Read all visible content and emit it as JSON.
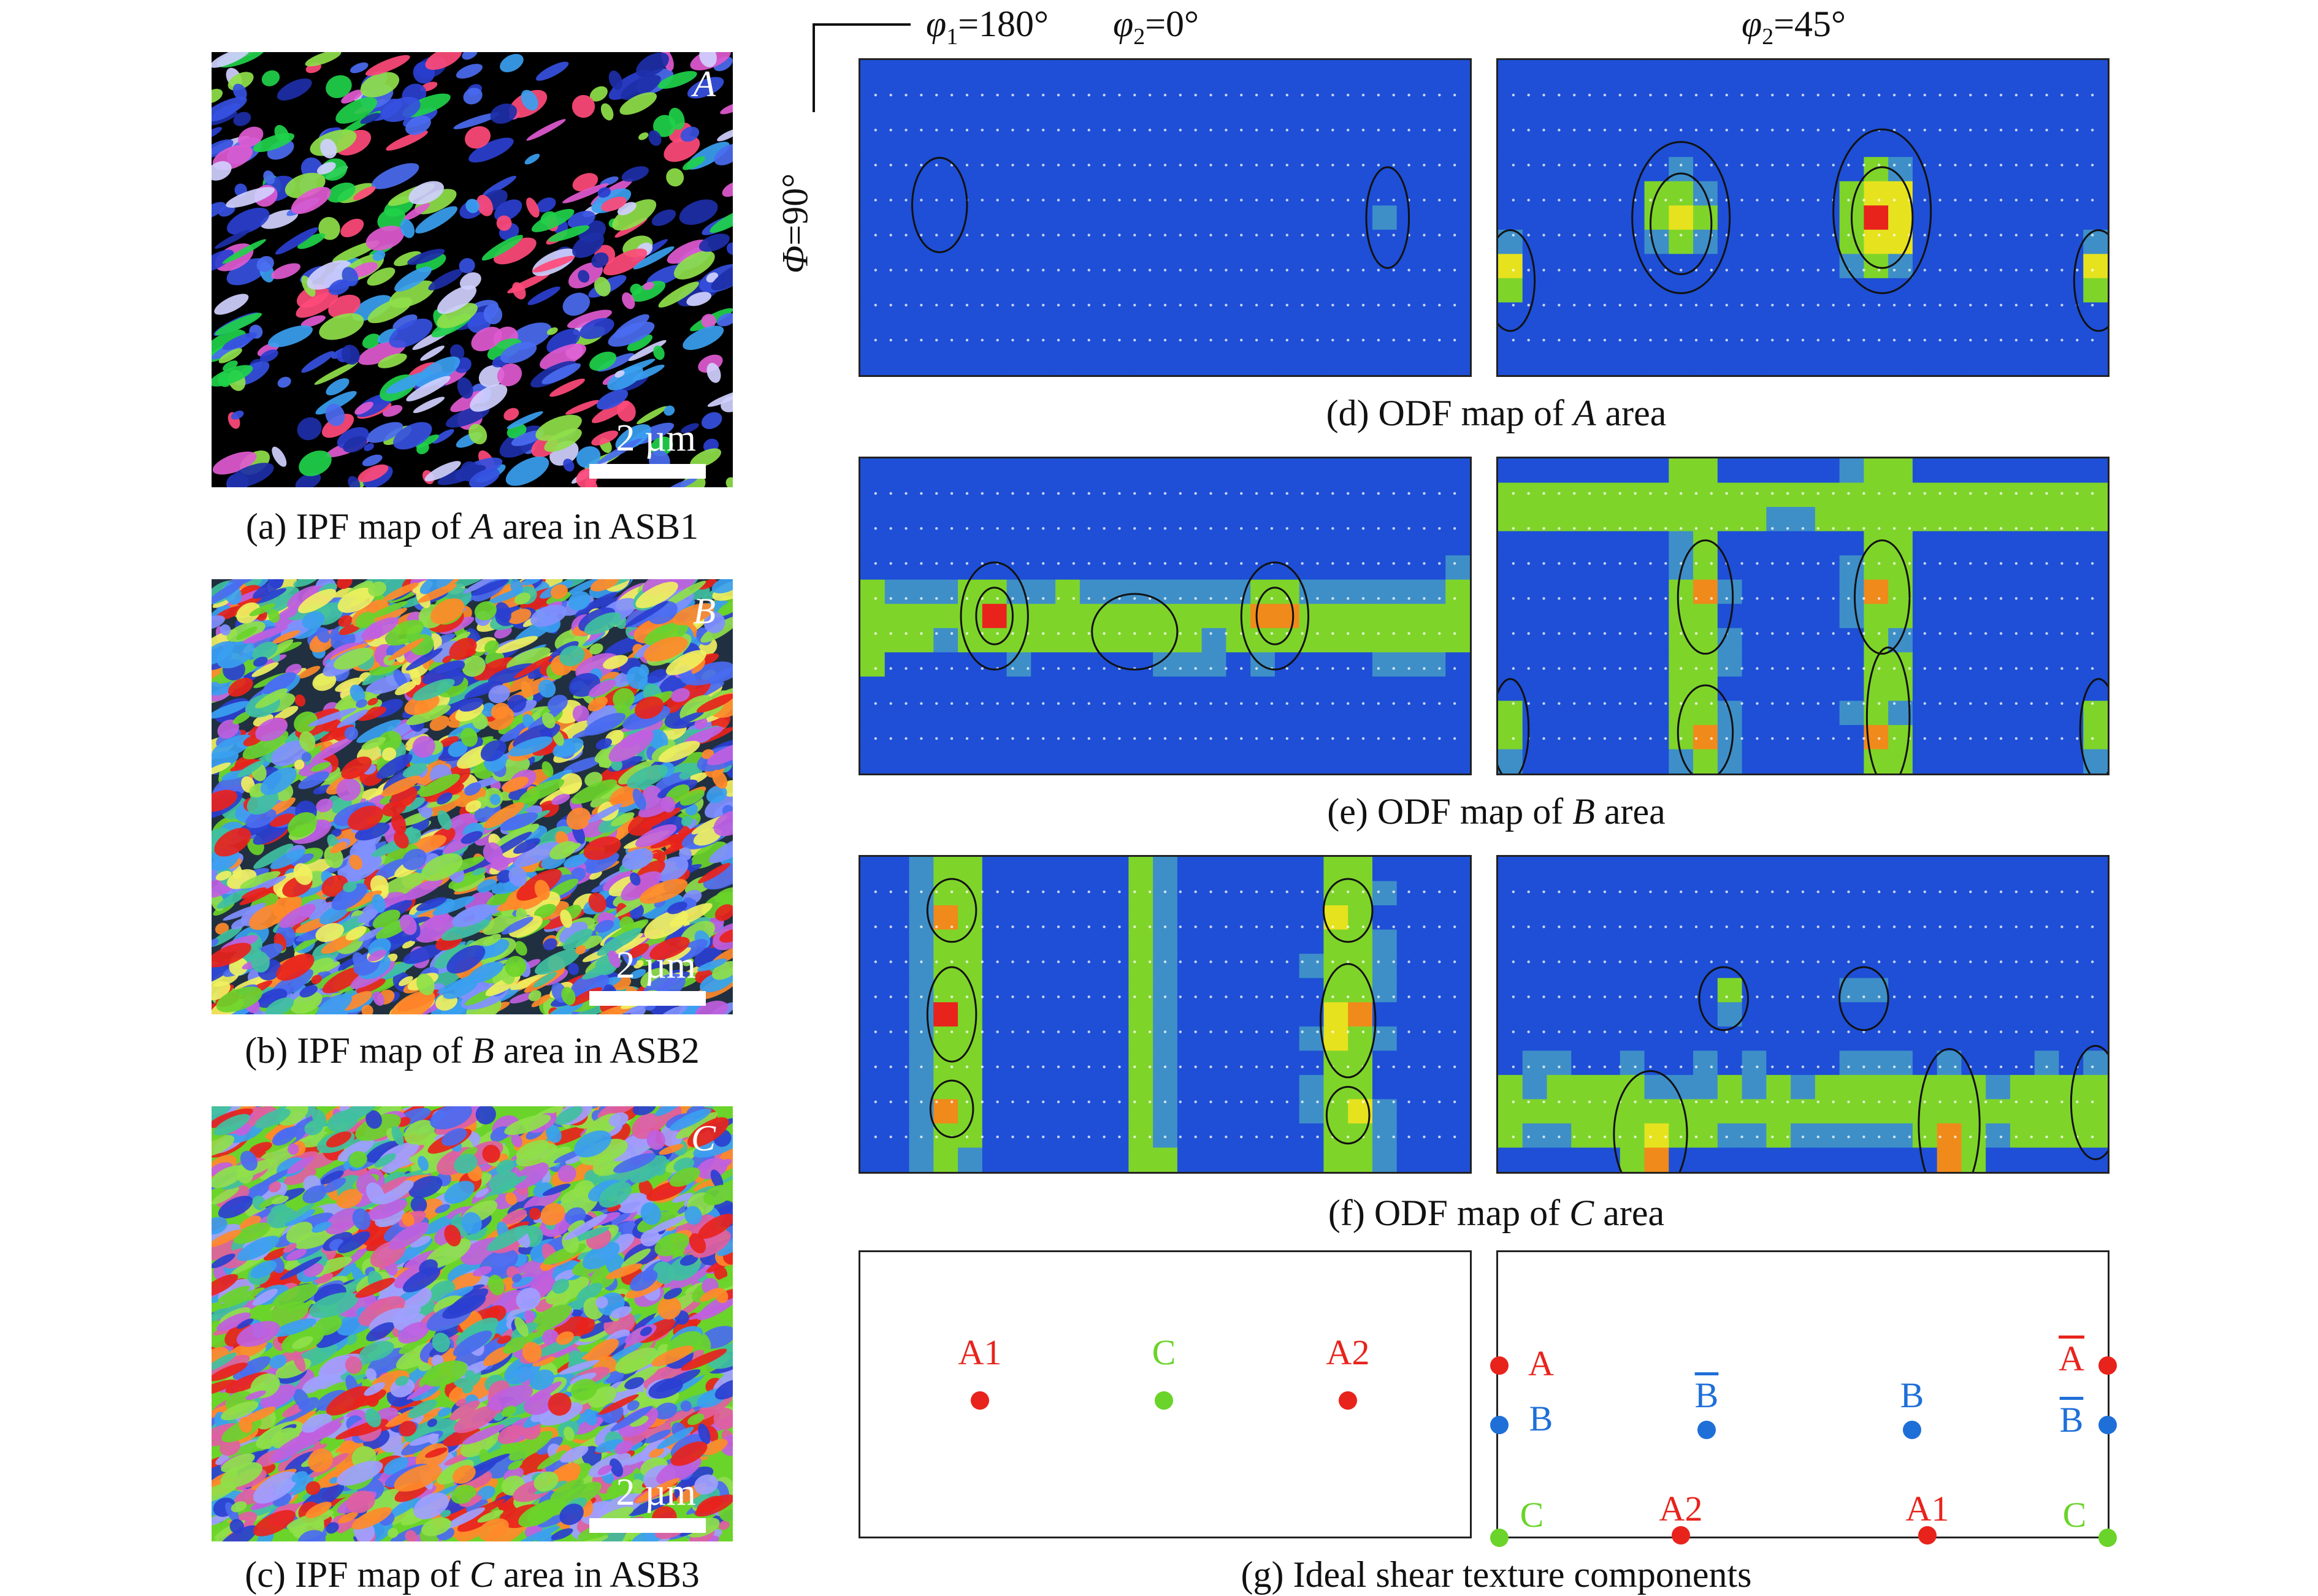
{
  "ipf_maps": [
    {
      "id": "a",
      "letter": "A",
      "scale": "2 µm",
      "caption_prefix": "(a) IPF map of ",
      "caption_italic": "A",
      "caption_suffix": " area in ASB1"
    },
    {
      "id": "b",
      "letter": "B",
      "scale": "2 µm",
      "caption_prefix": "(b) IPF map of ",
      "caption_italic": "B",
      "caption_suffix": " area in ASB2"
    },
    {
      "id": "c",
      "letter": "C",
      "scale": "2 µm",
      "caption_prefix": "(c) IPF map of ",
      "caption_italic": "C",
      "caption_suffix": " area in ASB3"
    }
  ],
  "odf_axes": {
    "phi1": "φ1=180°",
    "phi1_sym": "φ",
    "phi1_sub": "1",
    "phi1_val": "=180°",
    "phi2_0_sym": "φ",
    "phi2_0_sub": "2",
    "phi2_0_val": "=0°",
    "phi2_45_sym": "φ",
    "phi2_45_sub": "2",
    "phi2_45_val": "=45°",
    "Phi_sym": "Φ",
    "Phi_val": "=90°"
  },
  "odf_captions": [
    {
      "prefix": "(d) ODF map of ",
      "italic": "A",
      "suffix": " area"
    },
    {
      "prefix": "(e) ODF map of ",
      "italic": "B",
      "suffix": " area"
    },
    {
      "prefix": "(f) ODF map of ",
      "italic": "C",
      "suffix": " area"
    }
  ],
  "ideal": {
    "caption": "(g) Ideal shear texture components",
    "left_components": [
      {
        "label": "A1",
        "color": "#e8231c"
      },
      {
        "label": "C",
        "color": "#6ad42a"
      },
      {
        "label": "A2",
        "color": "#e8231c"
      }
    ],
    "right_components": [
      {
        "label": "A",
        "color": "#e8231c"
      },
      {
        "label": "B",
        "color": "#1f6fd8"
      },
      {
        "label": "C",
        "color": "#6ad42a"
      },
      {
        "label": "B",
        "color": "#1f6fd8",
        "overline": true
      },
      {
        "label": "A2",
        "color": "#e8231c"
      },
      {
        "label": "B",
        "color": "#1f6fd8"
      },
      {
        "label": "A1",
        "color": "#e8231c"
      },
      {
        "label": "A",
        "color": "#e8231c",
        "overline": true
      },
      {
        "label": "B",
        "color": "#1f6fd8",
        "overline": true
      },
      {
        "label": "C",
        "color": "#6ad42a"
      }
    ]
  },
  "colors": {
    "odf_blue": "#1e4fd6",
    "odf_green": "#7fd42a",
    "odf_yellow": "#e6e21e",
    "odf_orange": "#f08a1a",
    "odf_red": "#e8231c"
  }
}
